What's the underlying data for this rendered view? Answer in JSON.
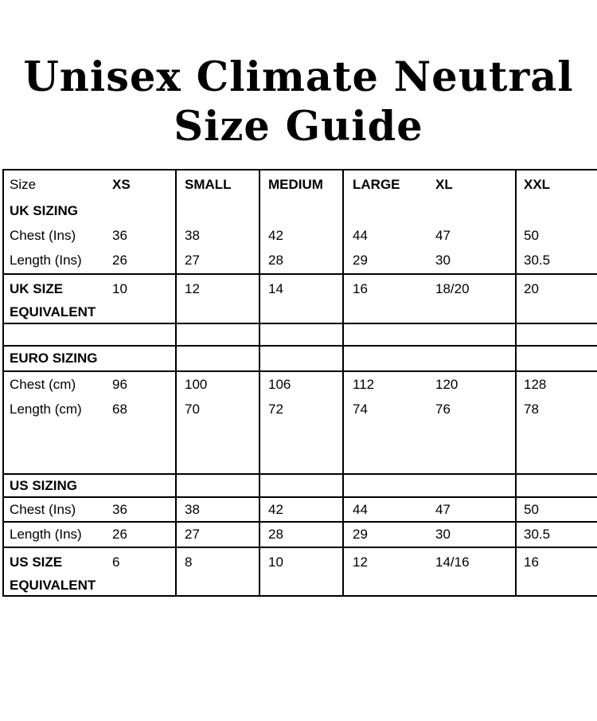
{
  "title": {
    "line1": "Unisex Climate Neutral",
    "line2": "Size Guide"
  },
  "table": {
    "header": {
      "size": "Size",
      "xs": "XS",
      "small": "SMALL",
      "medium": "MEDIUM",
      "large": "LARGE",
      "xl": "XL",
      "xxl": "XXL"
    },
    "uk": {
      "section": "UK SIZING",
      "chest": {
        "label": "Chest (Ins)",
        "values": [
          "36",
          "38",
          "42",
          "44",
          "47",
          "50"
        ]
      },
      "length": {
        "label": "Length (Ins)",
        "values": [
          "26",
          "27",
          "28",
          "29",
          "30",
          "30.5"
        ]
      },
      "equivalent": {
        "line1": "UK SIZE",
        "line2": "EQUIVALENT",
        "values": [
          "10",
          "12",
          "14",
          "16",
          "18/20",
          "20"
        ]
      }
    },
    "euro": {
      "section": "EURO SIZING",
      "chest": {
        "label": "Chest (cm)",
        "values": [
          "96",
          "100",
          "106",
          "112",
          "120",
          "128"
        ]
      },
      "length": {
        "label": "Length (cm)",
        "values": [
          "68",
          "70",
          "72",
          "74",
          "76",
          "78"
        ]
      }
    },
    "us": {
      "section": "US SIZING",
      "chest": {
        "label": "Chest (Ins)",
        "values": [
          "36",
          "38",
          "42",
          "44",
          "47",
          "50"
        ]
      },
      "length": {
        "label": "Length (Ins)",
        "values": [
          "26",
          "27",
          "28",
          "29",
          "30",
          "30.5"
        ]
      },
      "equivalent": {
        "line1": "US SIZE",
        "line2": "EQUIVALENT",
        "values": [
          "6",
          "8",
          "10",
          "12",
          "14/16",
          "16"
        ]
      }
    }
  },
  "colors": {
    "background": "#ffffff",
    "text": "#000000",
    "border": "#000000"
  }
}
